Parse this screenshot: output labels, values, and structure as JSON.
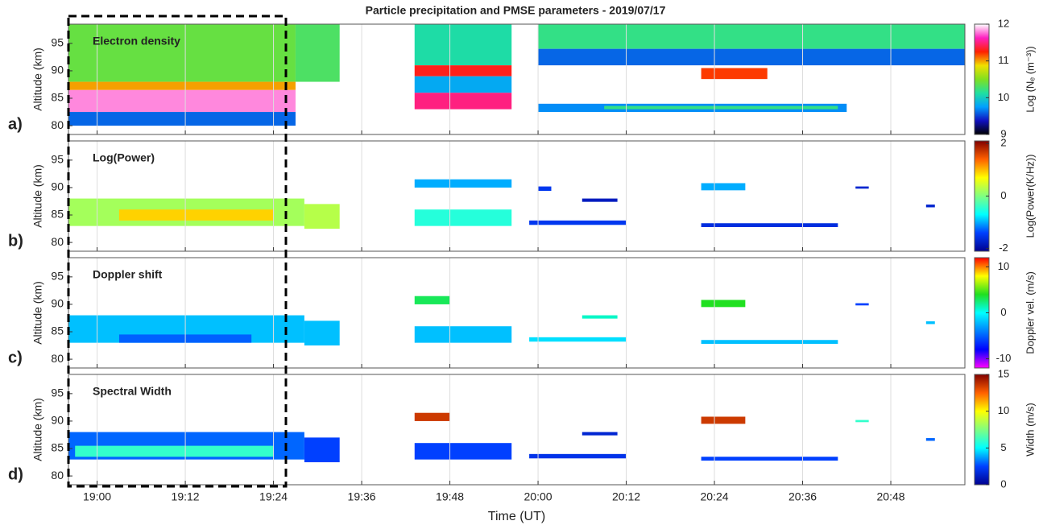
{
  "title": "Particle precipitation and PMSE parameters - 2019/07/17",
  "chart_data": [
    {
      "type": "heatmap",
      "panel_label": "a)",
      "title": "Electron density",
      "ylabel": "Altitude (km)",
      "xlim": [
        18.935,
        20.968
      ],
      "ylim": [
        78.4,
        98.5
      ],
      "yticks": [
        80,
        85,
        90,
        95
      ],
      "grid": true,
      "colormap": [
        "#000000",
        "#1010c0",
        "#00a0ff",
        "#20e0a0",
        "#80e020",
        "#f0e000",
        "#ff2000",
        "#ff20c0",
        "#ffffff"
      ],
      "colorbar": {
        "label": "Log (Nₑ (m⁻³))",
        "lim": [
          9,
          12
        ],
        "ticks": [
          9,
          10,
          11,
          12
        ]
      },
      "regions": [
        {
          "t0": 18.935,
          "t1": 19.45,
          "alt0": 88,
          "alt1": 98.5,
          "value": 10.4
        },
        {
          "t0": 18.935,
          "t1": 19.45,
          "alt0": 86.5,
          "alt1": 88,
          "value": 11.0
        },
        {
          "t0": 18.935,
          "t1": 19.45,
          "alt0": 82.5,
          "alt1": 86.5,
          "value": 11.8
        },
        {
          "t0": 18.935,
          "t1": 19.45,
          "alt0": 80,
          "alt1": 82.5,
          "value": 9.6
        },
        {
          "t0": 19.45,
          "t1": 19.55,
          "alt0": 88,
          "alt1": 98.5,
          "value": 10.3
        },
        {
          "t0": 19.72,
          "t1": 19.94,
          "alt0": 91,
          "alt1": 98.5,
          "value": 10.1
        },
        {
          "t0": 19.72,
          "t1": 19.94,
          "alt0": 89,
          "alt1": 91,
          "value": 11.3
        },
        {
          "t0": 19.72,
          "t1": 19.94,
          "alt0": 86,
          "alt1": 89,
          "value": 9.8
        },
        {
          "t0": 19.72,
          "t1": 19.94,
          "alt0": 83,
          "alt1": 86,
          "value": 11.5
        },
        {
          "t0": 20.0,
          "t1": 20.968,
          "alt0": 94,
          "alt1": 98.5,
          "value": 10.2
        },
        {
          "t0": 20.0,
          "t1": 20.968,
          "alt0": 91,
          "alt1": 94,
          "value": 9.6
        },
        {
          "t0": 20.37,
          "t1": 20.52,
          "alt0": 88.5,
          "alt1": 90.5,
          "value": 11.2
        },
        {
          "t0": 20.0,
          "t1": 20.7,
          "alt0": 82.5,
          "alt1": 84,
          "value": 9.7
        },
        {
          "t0": 20.15,
          "t1": 20.68,
          "alt0": 83,
          "alt1": 83.6,
          "value": 10.2
        }
      ]
    },
    {
      "type": "heatmap",
      "panel_label": "b)",
      "title": "Log(Power)",
      "ylabel": "Altitude (km)",
      "xlim": [
        18.935,
        20.968
      ],
      "ylim": [
        78.4,
        98.5
      ],
      "yticks": [
        80,
        85,
        90,
        95
      ],
      "grid": true,
      "colormap": [
        "#00008f",
        "#0040ff",
        "#00ffff",
        "#80ff80",
        "#ffff00",
        "#ff6000",
        "#800000"
      ],
      "colorbar": {
        "label": "Log(Power(K/Hz))",
        "lim": [
          -2.1,
          2.1
        ],
        "ticks": [
          -2,
          0,
          2
        ]
      },
      "regions": [
        {
          "t0": 18.935,
          "t1": 19.47,
          "alt0": 83,
          "alt1": 88,
          "value": 0.2
        },
        {
          "t0": 19.05,
          "t1": 19.4,
          "alt0": 84,
          "alt1": 86,
          "value": 0.9
        },
        {
          "t0": 19.47,
          "t1": 19.55,
          "alt0": 82.5,
          "alt1": 87,
          "value": 0.3
        },
        {
          "t0": 19.72,
          "t1": 19.94,
          "alt0": 83,
          "alt1": 86,
          "value": -0.5
        },
        {
          "t0": 19.72,
          "t1": 19.94,
          "alt0": 90,
          "alt1": 91.5,
          "value": -1.0
        },
        {
          "t0": 19.98,
          "t1": 20.2,
          "alt0": 83.2,
          "alt1": 84,
          "value": -1.5
        },
        {
          "t0": 20.1,
          "t1": 20.18,
          "alt0": 87.4,
          "alt1": 88,
          "value": -1.8
        },
        {
          "t0": 20.0,
          "t1": 20.03,
          "alt0": 89.4,
          "alt1": 90.2,
          "value": -1.5
        },
        {
          "t0": 20.37,
          "t1": 20.68,
          "alt0": 82.8,
          "alt1": 83.5,
          "value": -1.6
        },
        {
          "t0": 20.37,
          "t1": 20.47,
          "alt0": 89.5,
          "alt1": 90.8,
          "value": -1.0
        },
        {
          "t0": 20.72,
          "t1": 20.75,
          "alt0": 89.8,
          "alt1": 90.2,
          "value": -1.7
        },
        {
          "t0": 20.88,
          "t1": 20.9,
          "alt0": 86.4,
          "alt1": 86.9,
          "value": -1.7
        }
      ]
    },
    {
      "type": "heatmap",
      "panel_label": "c)",
      "title": "Doppler shift",
      "ylabel": "Altitude (km)",
      "xlim": [
        18.935,
        20.968
      ],
      "ylim": [
        78.4,
        98.5
      ],
      "yticks": [
        80,
        85,
        90,
        95
      ],
      "grid": true,
      "colormap": [
        "#ff00ff",
        "#0000ff",
        "#0080ff",
        "#00ffff",
        "#20e020",
        "#ffff00",
        "#ff0000"
      ],
      "colorbar": {
        "label": "Doppler vel. (m/s)",
        "lim": [
          -12,
          12
        ],
        "ticks": [
          -10,
          0,
          10
        ]
      },
      "regions": [
        {
          "t0": 18.935,
          "t1": 19.47,
          "alt0": 83,
          "alt1": 88,
          "value": -2
        },
        {
          "t0": 19.05,
          "t1": 19.35,
          "alt0": 83,
          "alt1": 84.5,
          "value": -5
        },
        {
          "t0": 19.47,
          "t1": 19.55,
          "alt0": 82.5,
          "alt1": 87,
          "value": -2
        },
        {
          "t0": 19.72,
          "t1": 19.94,
          "alt0": 83,
          "alt1": 86,
          "value": -2
        },
        {
          "t0": 19.72,
          "t1": 19.8,
          "alt0": 90,
          "alt1": 91.5,
          "value": 3
        },
        {
          "t0": 19.98,
          "t1": 20.2,
          "alt0": 83.2,
          "alt1": 84,
          "value": -1
        },
        {
          "t0": 20.1,
          "t1": 20.18,
          "alt0": 87.4,
          "alt1": 88,
          "value": 1
        },
        {
          "t0": 20.37,
          "t1": 20.68,
          "alt0": 82.8,
          "alt1": 83.5,
          "value": -2
        },
        {
          "t0": 20.37,
          "t1": 20.47,
          "alt0": 89.5,
          "alt1": 90.8,
          "value": 4
        },
        {
          "t0": 20.72,
          "t1": 20.75,
          "alt0": 89.8,
          "alt1": 90.2,
          "value": -6
        },
        {
          "t0": 20.88,
          "t1": 20.9,
          "alt0": 86.4,
          "alt1": 86.9,
          "value": -2
        }
      ]
    },
    {
      "type": "heatmap",
      "panel_label": "d)",
      "title": "Spectral Width",
      "ylabel": "Altitude (km)",
      "xlabel": "Time (UT)",
      "xlim": [
        18.935,
        20.968
      ],
      "ylim": [
        78.4,
        98.5
      ],
      "yticks": [
        80,
        85,
        90,
        95
      ],
      "grid": true,
      "xticks": [
        {
          "value": 19.0,
          "label": "19:00"
        },
        {
          "value": 19.2,
          "label": "19:12"
        },
        {
          "value": 19.4,
          "label": "19:24"
        },
        {
          "value": 19.6,
          "label": "19:36"
        },
        {
          "value": 19.8,
          "label": "19:48"
        },
        {
          "value": 20.0,
          "label": "20:00"
        },
        {
          "value": 20.2,
          "label": "20:12"
        },
        {
          "value": 20.4,
          "label": "20:24"
        },
        {
          "value": 20.6,
          "label": "20:36"
        },
        {
          "value": 20.8,
          "label": "20:48"
        }
      ],
      "colormap": [
        "#00008f",
        "#0040ff",
        "#00ffff",
        "#80ff80",
        "#ffff00",
        "#ff6000",
        "#800000"
      ],
      "colorbar": {
        "label": "Width (m/s)",
        "lim": [
          0,
          15
        ],
        "ticks": [
          0,
          5,
          10,
          15
        ]
      },
      "regions": [
        {
          "t0": 18.935,
          "t1": 19.47,
          "alt0": 83,
          "alt1": 88,
          "value": 3
        },
        {
          "t0": 18.95,
          "t1": 19.4,
          "alt0": 83.5,
          "alt1": 85.5,
          "value": 6
        },
        {
          "t0": 19.47,
          "t1": 19.55,
          "alt0": 82.5,
          "alt1": 87,
          "value": 2.5
        },
        {
          "t0": 19.72,
          "t1": 19.94,
          "alt0": 83,
          "alt1": 86,
          "value": 2.5
        },
        {
          "t0": 19.72,
          "t1": 19.8,
          "alt0": 90,
          "alt1": 91.5,
          "value": 13.5
        },
        {
          "t0": 19.98,
          "t1": 20.2,
          "alt0": 83.2,
          "alt1": 84,
          "value": 2
        },
        {
          "t0": 20.1,
          "t1": 20.18,
          "alt0": 87.4,
          "alt1": 88,
          "value": 1.5
        },
        {
          "t0": 20.37,
          "t1": 20.68,
          "alt0": 82.8,
          "alt1": 83.5,
          "value": 2.5
        },
        {
          "t0": 20.37,
          "t1": 20.47,
          "alt0": 89.5,
          "alt1": 90.8,
          "value": 13.5
        },
        {
          "t0": 20.72,
          "t1": 20.75,
          "alt0": 89.8,
          "alt1": 90.2,
          "value": 6
        },
        {
          "t0": 20.88,
          "t1": 20.9,
          "alt0": 86.4,
          "alt1": 86.9,
          "value": 3
        }
      ]
    }
  ]
}
